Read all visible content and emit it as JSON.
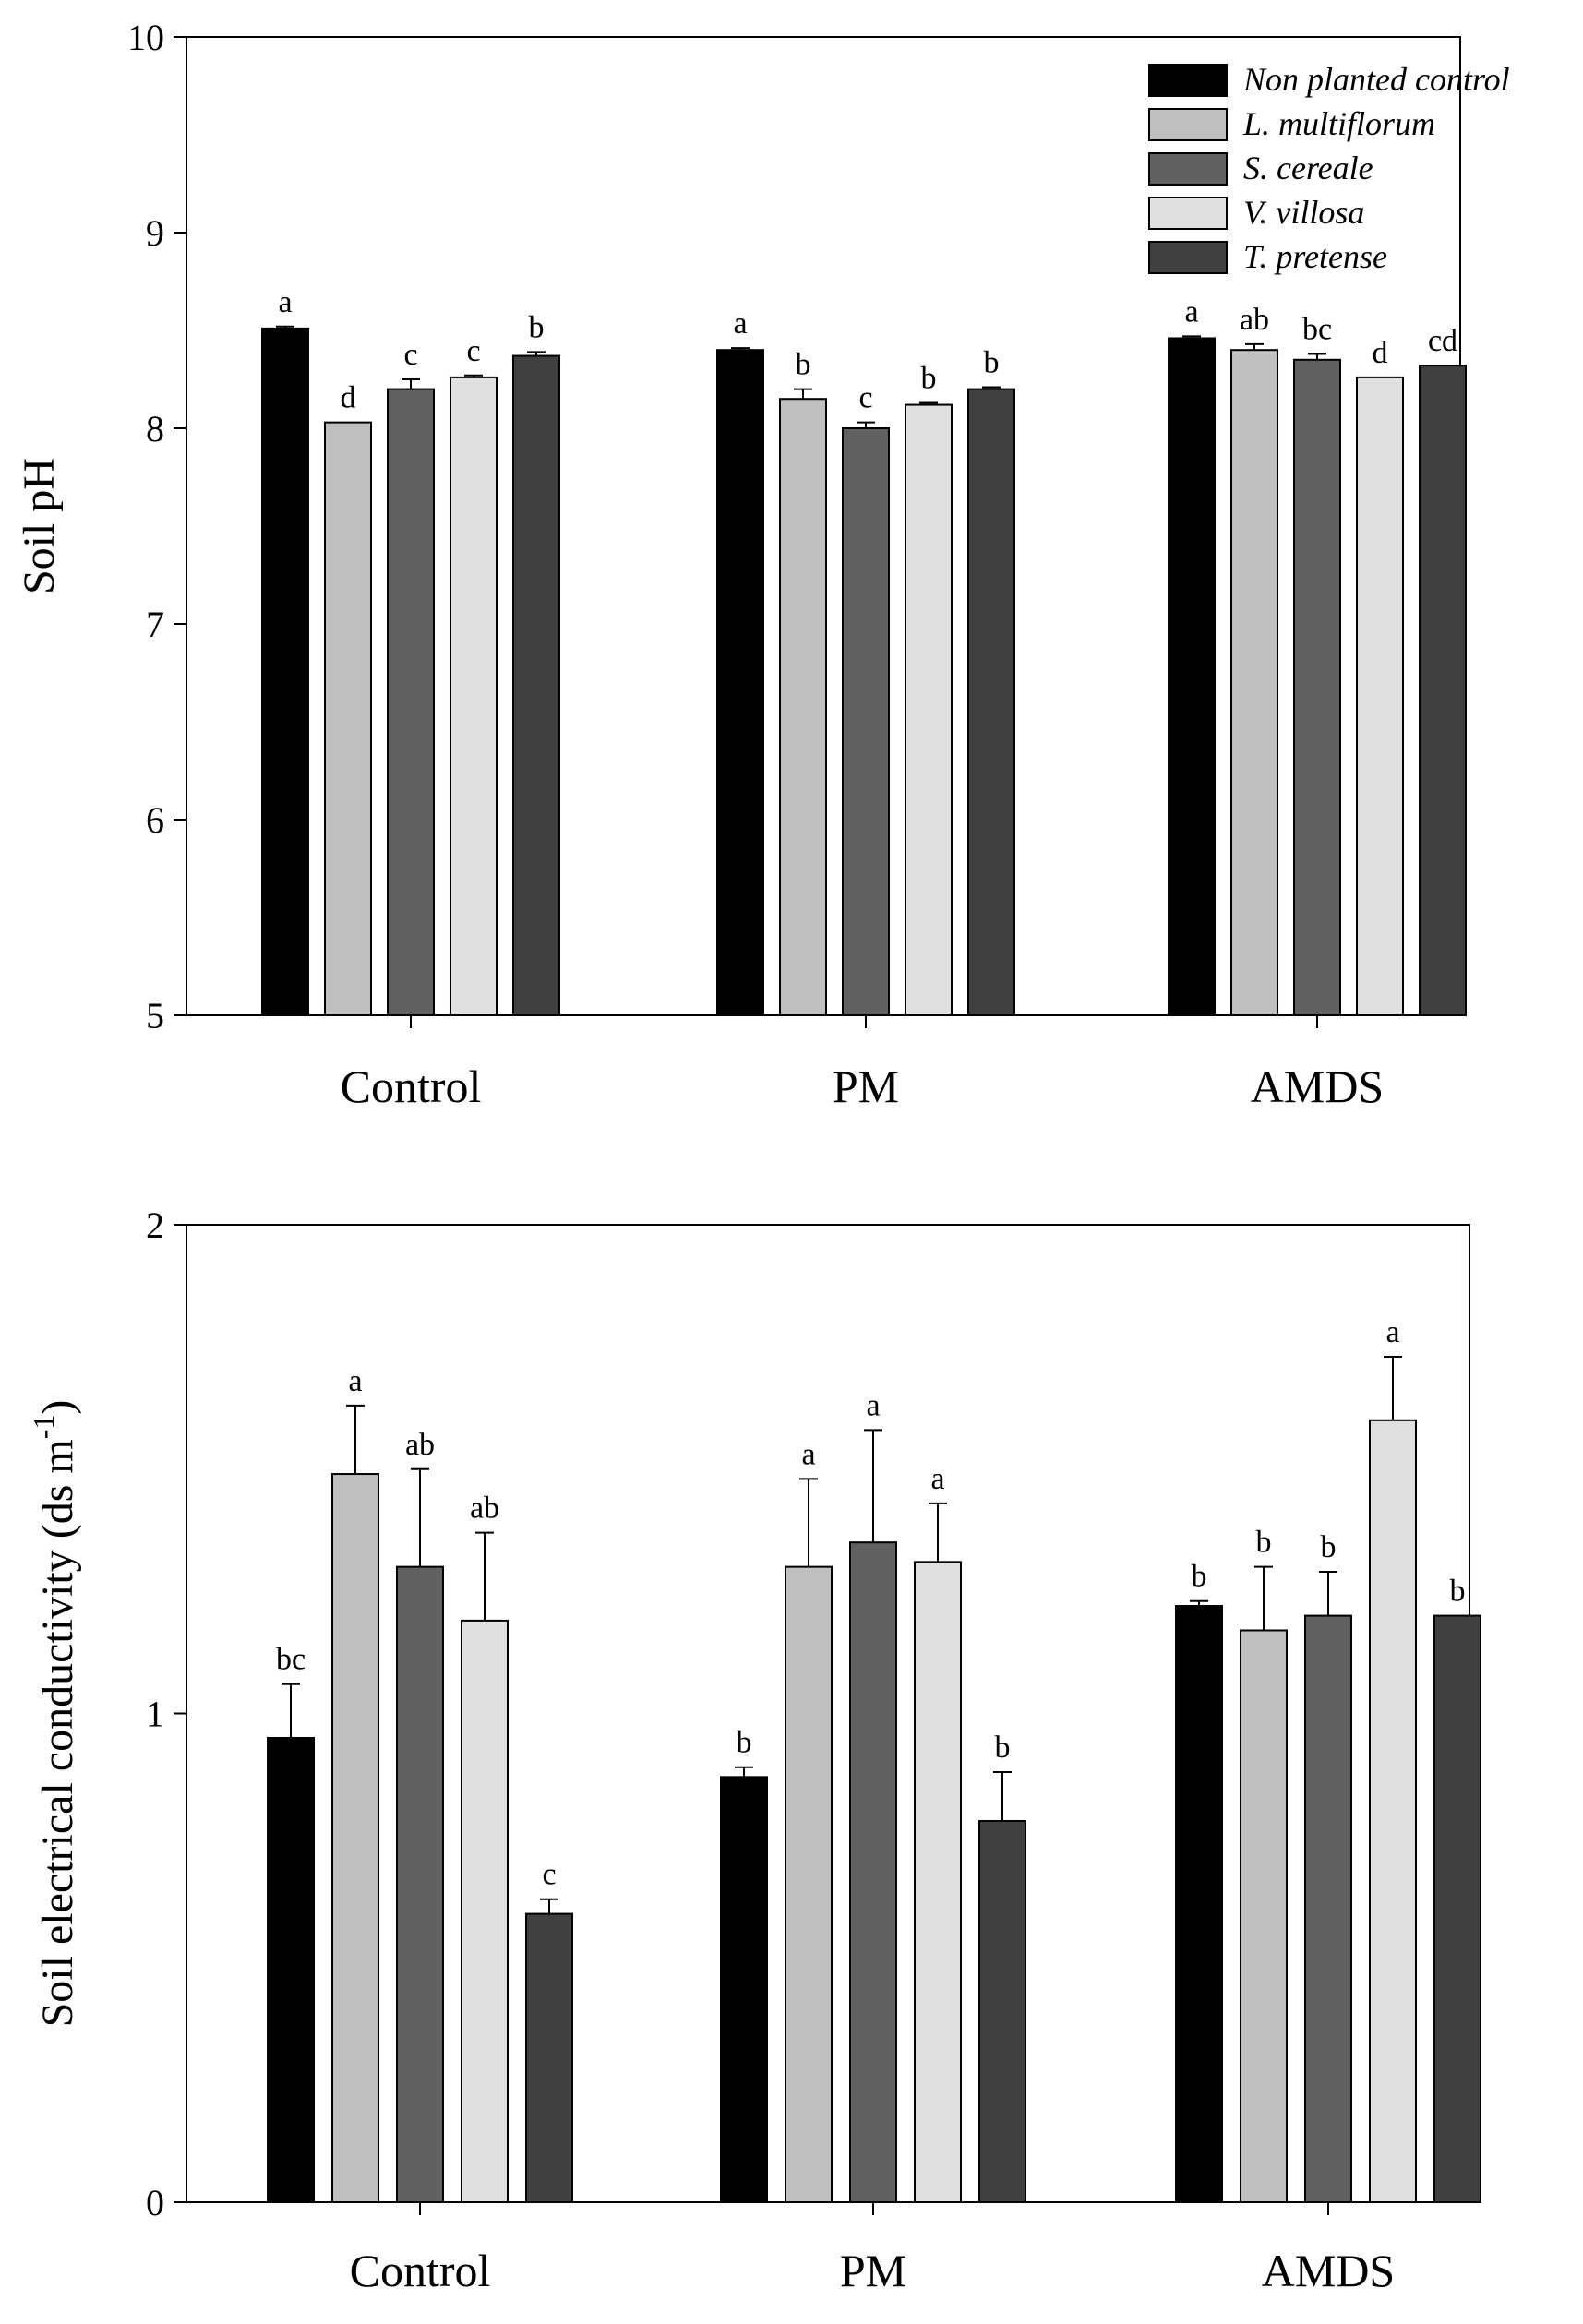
{
  "series": [
    {
      "name": "Non planted control",
      "color": "#000000"
    },
    {
      "name": "L. multiflorum",
      "color": "#c0c0c0"
    },
    {
      "name": "S. cereale",
      "color": "#606060"
    },
    {
      "name": "V. villosa",
      "color": "#e0e0e0"
    },
    {
      "name": "T. pretense",
      "color": "#404040"
    }
  ],
  "chart_data": [
    {
      "type": "bar",
      "categories": [
        "Control",
        "PM",
        "AMDS"
      ],
      "ylabel": "Soil pH",
      "ylim": [
        5,
        10
      ],
      "yticks": [
        5,
        6,
        7,
        8,
        9,
        10
      ],
      "legend": "top-right",
      "series": [
        {
          "name": "Non planted control",
          "values": [
            8.51,
            8.4,
            8.46
          ],
          "errors": [
            0.01,
            0.01,
            0.01
          ],
          "letters": [
            "a",
            "a",
            "a"
          ]
        },
        {
          "name": "L. multiflorum",
          "values": [
            8.03,
            8.15,
            8.4
          ],
          "errors": [
            0.0,
            0.05,
            0.03
          ],
          "letters": [
            "d",
            "b",
            "ab"
          ]
        },
        {
          "name": "S. cereale",
          "values": [
            8.2,
            8.0,
            8.35
          ],
          "errors": [
            0.05,
            0.03,
            0.03
          ],
          "letters": [
            "c",
            "c",
            "bc"
          ]
        },
        {
          "name": "V. villosa",
          "values": [
            8.26,
            8.12,
            8.26
          ],
          "errors": [
            0.01,
            0.01,
            0.0
          ],
          "letters": [
            "c",
            "b",
            "d"
          ]
        },
        {
          "name": "T. pretense",
          "values": [
            8.37,
            8.2,
            8.32
          ],
          "errors": [
            0.02,
            0.01,
            0.0
          ],
          "letters": [
            "b",
            "b",
            "cd"
          ]
        }
      ]
    },
    {
      "type": "bar",
      "categories": [
        "Control",
        "PM",
        "AMDS"
      ],
      "ylabel": "Soil electrical conductivity (ds m",
      "ylabel_sup": "-1",
      "ylabel_close": ")",
      "ylim": [
        0,
        2
      ],
      "yticks": [
        0,
        1,
        2
      ],
      "series": [
        {
          "name": "Non planted control",
          "values": [
            0.95,
            0.87,
            1.22
          ],
          "errors": [
            0.11,
            0.02,
            0.01
          ],
          "letters": [
            "bc",
            "b",
            "b"
          ]
        },
        {
          "name": "L. multiflorum",
          "values": [
            1.49,
            1.3,
            1.17
          ],
          "errors": [
            0.14,
            0.18,
            0.13
          ],
          "letters": [
            "a",
            "a",
            "b"
          ]
        },
        {
          "name": "S. cereale",
          "values": [
            1.3,
            1.35,
            1.2
          ],
          "errors": [
            0.2,
            0.23,
            0.09
          ],
          "letters": [
            "ab",
            "a",
            "b"
          ]
        },
        {
          "name": "V. villosa",
          "values": [
            1.19,
            1.31,
            1.6
          ],
          "errors": [
            0.18,
            0.12,
            0.13
          ],
          "letters": [
            "ab",
            "a",
            "a"
          ]
        },
        {
          "name": "T. pretense",
          "values": [
            0.59,
            0.78,
            1.2
          ],
          "errors": [
            0.03,
            0.1,
            0.0
          ],
          "letters": [
            "c",
            "b",
            "b"
          ]
        }
      ]
    }
  ]
}
